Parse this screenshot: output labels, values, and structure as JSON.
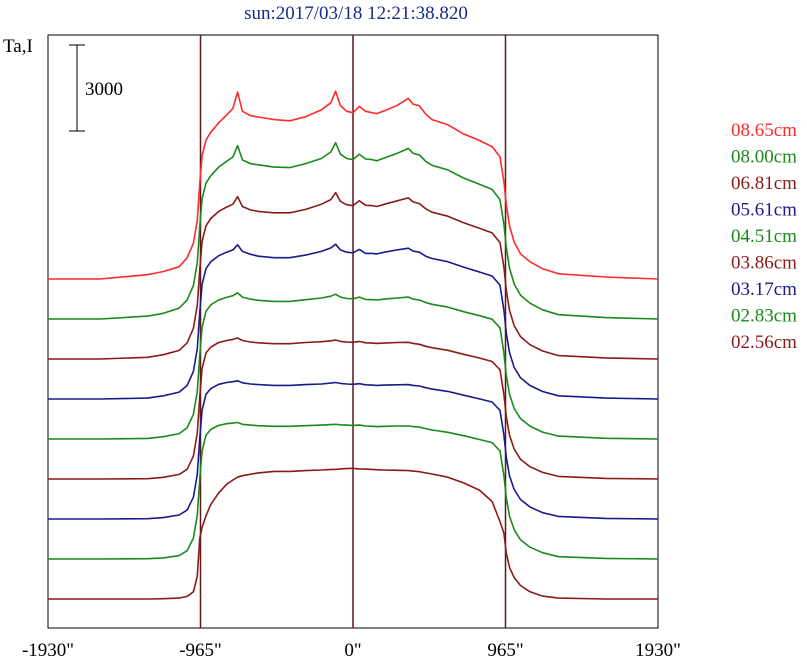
{
  "chart_data": {
    "type": "line",
    "title": "sun:2017/03/18 12:21:38.820",
    "ylabel": "Ta,I",
    "scale_bar_label": "3000",
    "scale_bar_value": 3000,
    "xlim": [
      -1930,
      1930
    ],
    "x_ticks": [
      {
        "value": -1930,
        "label": "-1930\""
      },
      {
        "value": -965,
        "label": "-965\""
      },
      {
        "value": 0,
        "label": "0\""
      },
      {
        "value": 965,
        "label": "965\""
      },
      {
        "value": 1930,
        "label": "1930\""
      }
    ],
    "vertical_lines": [
      -965,
      0,
      965
    ],
    "vertical_line_color": "#5a1a1a",
    "profile_x": [
      -1930,
      -1600,
      -1300,
      -1200,
      -1100,
      -1050,
      -1010,
      -985,
      -970,
      -955,
      -930,
      -900,
      -850,
      -800,
      -760,
      -730,
      -700,
      -650,
      -600,
      -500,
      -400,
      -300,
      -200,
      -140,
      -110,
      -80,
      -40,
      0,
      40,
      80,
      120,
      150,
      200,
      280,
      350,
      380,
      420,
      460,
      500,
      600,
      700,
      800,
      880,
      930,
      955,
      970,
      990,
      1020,
      1060,
      1120,
      1200,
      1300,
      1600,
      1930
    ],
    "series": [
      {
        "name": "08.65cm",
        "color": "#ff2a2a",
        "baseline_offset": 8,
        "y": [
          0,
          0,
          150,
          260,
          430,
          740,
          1250,
          2050,
          3300,
          4300,
          4850,
          5120,
          5450,
          5720,
          5950,
          6520,
          5850,
          5700,
          5650,
          5560,
          5520,
          5660,
          5900,
          6150,
          6550,
          6050,
          5850,
          5800,
          6020,
          5850,
          5800,
          5770,
          5870,
          6060,
          6300,
          6100,
          6040,
          5750,
          5560,
          5380,
          5060,
          4830,
          4620,
          4260,
          3400,
          2600,
          1850,
          1280,
          880,
          600,
          360,
          180,
          70,
          0
        ]
      },
      {
        "name": "08.00cm",
        "color": "#1a8a1a",
        "baseline_offset": 7,
        "y": [
          0,
          0,
          100,
          200,
          380,
          660,
          1170,
          1970,
          3200,
          4200,
          4740,
          5000,
          5300,
          5500,
          5650,
          6050,
          5550,
          5420,
          5380,
          5300,
          5280,
          5420,
          5600,
          5830,
          6150,
          5750,
          5600,
          5560,
          5750,
          5580,
          5560,
          5520,
          5620,
          5780,
          5950,
          5780,
          5720,
          5500,
          5360,
          5200,
          4920,
          4700,
          4520,
          4160,
          3300,
          2500,
          1780,
          1220,
          830,
          550,
          320,
          150,
          50,
          0
        ]
      },
      {
        "name": "06.81cm",
        "color": "#8b1a1a",
        "baseline_offset": 6,
        "y": [
          0,
          0,
          60,
          150,
          300,
          560,
          1070,
          1870,
          3100,
          4100,
          4650,
          4900,
          5150,
          5300,
          5400,
          5660,
          5320,
          5200,
          5150,
          5100,
          5100,
          5220,
          5400,
          5560,
          5800,
          5500,
          5380,
          5350,
          5520,
          5360,
          5350,
          5320,
          5400,
          5520,
          5620,
          5480,
          5420,
          5240,
          5120,
          4980,
          4750,
          4560,
          4400,
          4060,
          3200,
          2400,
          1700,
          1160,
          780,
          500,
          280,
          120,
          40,
          0
        ]
      },
      {
        "name": "05.61cm",
        "color": "#1a1a8a",
        "baseline_offset": 5,
        "y": [
          0,
          0,
          30,
          110,
          240,
          470,
          960,
          1760,
          3000,
          4000,
          4550,
          4790,
          5000,
          5120,
          5200,
          5380,
          5150,
          5050,
          4980,
          4930,
          4930,
          5020,
          5150,
          5270,
          5400,
          5200,
          5120,
          5100,
          5220,
          5080,
          5080,
          5060,
          5120,
          5200,
          5260,
          5160,
          5120,
          4980,
          4900,
          4790,
          4600,
          4430,
          4290,
          3970,
          3100,
          2300,
          1620,
          1100,
          740,
          470,
          260,
          110,
          30,
          0
        ]
      },
      {
        "name": "04.51cm",
        "color": "#1a8a1a",
        "baseline_offset": 4,
        "y": [
          0,
          0,
          20,
          80,
          190,
          390,
          860,
          1660,
          2900,
          3900,
          4450,
          4680,
          4850,
          4940,
          5000,
          5100,
          4950,
          4880,
          4840,
          4800,
          4800,
          4860,
          4920,
          4980,
          5050,
          4950,
          4900,
          4890,
          4950,
          4870,
          4860,
          4850,
          4880,
          4920,
          4950,
          4880,
          4850,
          4760,
          4700,
          4600,
          4440,
          4300,
          4180,
          3880,
          3000,
          2220,
          1560,
          1060,
          710,
          450,
          240,
          100,
          25,
          0
        ]
      },
      {
        "name": "03.86cm",
        "color": "#8b1a1a",
        "baseline_offset": 3,
        "y": [
          0,
          0,
          10,
          60,
          160,
          340,
          800,
          1600,
          2850,
          3850,
          4400,
          4600,
          4760,
          4830,
          4870,
          4920,
          4830,
          4780,
          4750,
          4720,
          4720,
          4760,
          4790,
          4820,
          4850,
          4800,
          4780,
          4770,
          4800,
          4750,
          4740,
          4730,
          4740,
          4760,
          4770,
          4730,
          4700,
          4630,
          4580,
          4490,
          4350,
          4220,
          4100,
          3810,
          2950,
          2180,
          1530,
          1040,
          690,
          430,
          230,
          90,
          20,
          0
        ]
      },
      {
        "name": "03.17cm",
        "color": "#1a1a8a",
        "baseline_offset": 2,
        "y": [
          0,
          0,
          10,
          50,
          140,
          310,
          760,
          1560,
          2800,
          3800,
          4350,
          4550,
          4700,
          4760,
          4790,
          4820,
          4750,
          4710,
          4690,
          4660,
          4660,
          4690,
          4710,
          4740,
          4760,
          4730,
          4710,
          4700,
          4720,
          4680,
          4670,
          4660,
          4670,
          4680,
          4690,
          4660,
          4640,
          4580,
          4530,
          4450,
          4320,
          4190,
          4080,
          3790,
          2930,
          2160,
          1510,
          1030,
          680,
          420,
          220,
          90,
          20,
          0
        ]
      },
      {
        "name": "02.83cm",
        "color": "#1a8a1a",
        "baseline_offset": 1,
        "y": [
          0,
          0,
          10,
          40,
          120,
          290,
          730,
          1530,
          2770,
          3770,
          4320,
          4520,
          4660,
          4720,
          4740,
          4760,
          4700,
          4670,
          4650,
          4630,
          4630,
          4650,
          4670,
          4690,
          4700,
          4680,
          4670,
          4660,
          4670,
          4640,
          4630,
          4620,
          4630,
          4640,
          4640,
          4620,
          4600,
          4550,
          4500,
          4420,
          4300,
          4170,
          4060,
          3770,
          2910,
          2140,
          1500,
          1020,
          670,
          410,
          220,
          80,
          20,
          0
        ]
      },
      {
        "name": "02.56cm",
        "color": "#8b1a1a",
        "baseline_offset": 0,
        "y": [
          0,
          0,
          0,
          10,
          30,
          90,
          250,
          800,
          2100,
          2500,
          2900,
          3300,
          3700,
          4000,
          4150,
          4250,
          4300,
          4350,
          4400,
          4450,
          4450,
          4480,
          4500,
          4520,
          4520,
          4540,
          4550,
          4560,
          4540,
          4530,
          4520,
          4510,
          4500,
          4490,
          4480,
          4460,
          4440,
          4400,
          4360,
          4250,
          4050,
          3800,
          3400,
          2700,
          2300,
          1600,
          1100,
          750,
          470,
          250,
          100,
          30,
          0,
          0
        ]
      }
    ]
  }
}
